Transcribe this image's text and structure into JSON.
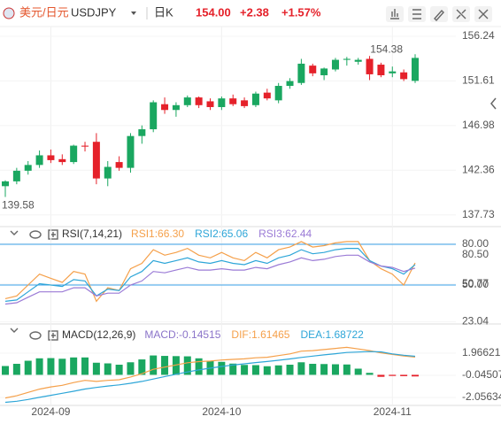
{
  "header": {
    "symbol_cn": "美元/日元",
    "symbol": "USDJPY",
    "period": "日K",
    "price": "154.00",
    "change": "+2.38",
    "change_pct": "+1.57%"
  },
  "chart_data": [
    {
      "type": "candlestick",
      "categories": [
        null,
        null,
        null,
        null,
        "2024-09",
        null,
        null,
        null,
        null,
        null,
        null,
        null,
        null,
        null,
        null,
        null,
        null,
        null,
        null,
        "2024-10",
        null,
        null,
        null,
        null,
        null,
        null,
        null,
        null,
        null,
        null,
        null,
        null,
        null,
        null,
        "2024-11",
        null,
        null
      ],
      "open": [
        140.7,
        141.2,
        142.3,
        142.9,
        143.9,
        143.5,
        143.2,
        144.9,
        145.3,
        141.5,
        143.2,
        142.6,
        145.9,
        146.6,
        149.2,
        148.6,
        149.1,
        149.9,
        149.5,
        148.9,
        149.8,
        149.6,
        149.1,
        150.4,
        149.6,
        151.1,
        151.4,
        153.2,
        152.2,
        152.8,
        153.8,
        153.6,
        153.9,
        153.3,
        152.4,
        152.5,
        151.62
      ],
      "high": [
        141.3,
        142.6,
        143.3,
        144.4,
        144.5,
        144.0,
        145.0,
        145.3,
        146.2,
        143.3,
        143.8,
        146.2,
        147.0,
        149.6,
        149.9,
        149.4,
        150.1,
        150.0,
        149.8,
        150.0,
        150.2,
        149.9,
        150.5,
        150.8,
        151.4,
        151.9,
        153.9,
        153.4,
        153.0,
        154.0,
        154.1,
        154.0,
        154.2,
        153.5,
        153.1,
        152.8,
        154.38
      ],
      "low": [
        139.58,
        140.9,
        141.9,
        142.6,
        143.1,
        142.9,
        143.0,
        144.3,
        140.9,
        140.7,
        142.3,
        142.1,
        145.1,
        146.3,
        148.2,
        147.9,
        148.9,
        148.8,
        148.6,
        148.6,
        149.0,
        148.8,
        148.9,
        149.6,
        149.3,
        150.8,
        151.2,
        152.1,
        151.7,
        152.6,
        153.2,
        153.3,
        151.7,
        152.0,
        152.0,
        151.6,
        151.4
      ],
      "close": [
        141.2,
        142.3,
        142.9,
        143.9,
        143.4,
        143.2,
        144.9,
        144.8,
        141.5,
        142.7,
        142.6,
        145.9,
        146.6,
        149.4,
        148.6,
        149.1,
        149.9,
        149.1,
        148.9,
        149.8,
        149.2,
        149.0,
        150.3,
        149.8,
        151.1,
        151.6,
        153.4,
        152.4,
        152.9,
        153.8,
        153.9,
        153.8,
        152.3,
        152.2,
        152.6,
        151.8,
        154.0
      ],
      "up_color": "#1aa760",
      "down_color": "#e5212a",
      "max_label": "154.38",
      "min_label": "139.58",
      "ylim": [
        136.6,
        157.25
      ],
      "yticks": [
        137.73,
        142.36,
        146.98,
        151.61,
        156.24
      ],
      "grid": true
    },
    {
      "type": "line",
      "title": "RSI(7,14,21)",
      "series": [
        {
          "name": "RSI1:66.30",
          "color": "#f5a04a",
          "values": [
            40,
            42,
            50,
            58,
            55,
            52,
            60,
            58,
            38,
            48,
            46,
            62,
            66,
            76,
            72,
            74,
            77,
            72,
            70,
            74,
            70,
            68,
            74,
            70,
            76,
            78,
            82,
            78,
            79,
            81,
            82,
            82,
            68,
            62,
            58,
            50,
            66.3
          ]
        },
        {
          "name": "RSI2:65.06",
          "color": "#2ea6d8",
          "values": [
            38,
            39,
            45,
            51,
            50,
            49,
            54,
            53,
            42,
            47,
            46,
            56,
            60,
            68,
            66,
            68,
            70,
            67,
            66,
            68,
            66,
            65,
            68,
            66,
            70,
            72,
            76,
            73,
            74,
            76,
            77,
            77,
            68,
            64,
            62,
            58,
            65.06
          ]
        },
        {
          "name": "RSI3:62.44",
          "color": "#9b7bd6",
          "values": [
            36,
            37,
            41,
            45,
            45,
            45,
            48,
            48,
            42,
            44,
            44,
            50,
            53,
            60,
            59,
            61,
            63,
            61,
            61,
            62,
            61,
            61,
            63,
            62,
            65,
            67,
            70,
            68,
            69,
            71,
            72,
            72,
            67,
            64,
            63,
            60,
            62.44
          ]
        }
      ],
      "hlines": [
        {
          "value": 80,
          "label": "80.00"
        },
        {
          "value": 50,
          "label": "50.00"
        }
      ],
      "hline_color": "#3aa0e8",
      "ylim": [
        22,
        85.2
      ],
      "yticks": [
        23.04,
        50.77,
        {
          "value": 80.5,
          "label": "80.50"
        }
      ],
      "grid": true
    },
    {
      "type": "macd",
      "title": "MACD(12,26,9)",
      "series": [
        {
          "name": "MACD:-0.14515",
          "type": "bar",
          "color": "#8b74c9",
          "up_color": "#1aa760",
          "down_color": "#e5212a",
          "values": [
            0.8,
            1.0,
            1.28,
            1.5,
            1.52,
            1.46,
            1.58,
            1.58,
            1.1,
            1.04,
            0.92,
            1.14,
            1.4,
            1.76,
            1.72,
            1.7,
            1.68,
            1.5,
            1.28,
            1.18,
            1.02,
            0.9,
            0.88,
            0.78,
            0.86,
            0.92,
            1.14,
            1.0,
            0.98,
            0.96,
            0.94,
            0.56,
            0.18,
            -0.18,
            -0.1,
            -0.12,
            -0.14515
          ]
        },
        {
          "name": "DIF:1.61465",
          "type": "line",
          "color": "#f5a04a",
          "values": [
            -2.1,
            -1.9,
            -1.6,
            -1.3,
            -1.1,
            -0.95,
            -0.7,
            -0.5,
            -0.6,
            -0.5,
            -0.45,
            -0.2,
            0.1,
            0.5,
            0.7,
            0.9,
            1.1,
            1.2,
            1.25,
            1.35,
            1.4,
            1.45,
            1.55,
            1.6,
            1.75,
            1.9,
            2.15,
            2.2,
            2.3,
            2.4,
            2.5,
            2.35,
            2.2,
            2.0,
            1.85,
            1.72,
            1.61465
          ]
        },
        {
          "name": "DEA:1.68722",
          "type": "line",
          "color": "#2ea6d8",
          "values": [
            -2.5,
            -2.4,
            -2.24,
            -2.05,
            -1.86,
            -1.68,
            -1.49,
            -1.29,
            -1.15,
            -1.02,
            -0.91,
            -0.77,
            -0.6,
            -0.38,
            -0.16,
            0.05,
            0.26,
            0.45,
            0.61,
            0.76,
            0.89,
            1.0,
            1.11,
            1.21,
            1.32,
            1.44,
            1.58,
            1.7,
            1.81,
            1.92,
            2.03,
            2.07,
            2.11,
            2.09,
            1.9,
            1.78,
            1.68722
          ]
        }
      ],
      "ylim": [
        -2.94,
        4.46
      ],
      "yticks": [
        -2.05634,
        -0.04507,
        1.96621
      ],
      "grid": true
    }
  ]
}
